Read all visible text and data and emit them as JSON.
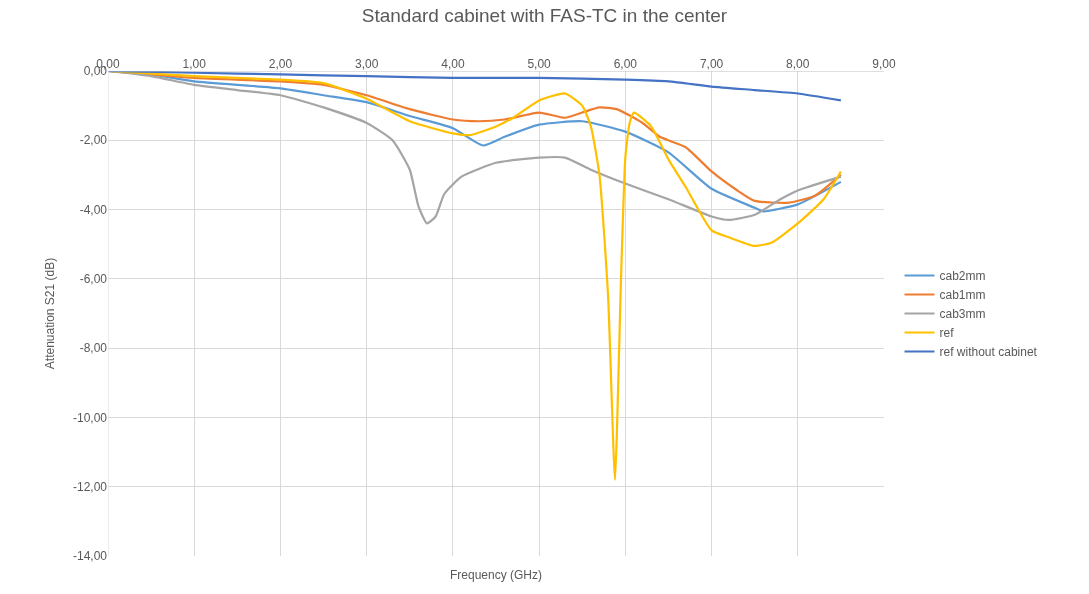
{
  "chart_data": {
    "type": "line",
    "title": "Standard cabinet with FAS-TC in the center",
    "xlabel": "Frequency (GHz)",
    "ylabel": "Attenuation S21 (dB)",
    "xlim": [
      0,
      9
    ],
    "ylim": [
      -14,
      0
    ],
    "xticks": [
      {
        "value": 0,
        "label": "0,00"
      },
      {
        "value": 1,
        "label": "1,00"
      },
      {
        "value": 2,
        "label": "2,00"
      },
      {
        "value": 3,
        "label": "3,00"
      },
      {
        "value": 4,
        "label": "4,00"
      },
      {
        "value": 5,
        "label": "5,00"
      },
      {
        "value": 6,
        "label": "6,00"
      },
      {
        "value": 7,
        "label": "7,00"
      },
      {
        "value": 8,
        "label": "8,00"
      },
      {
        "value": 9,
        "label": "9,00"
      }
    ],
    "yticks": [
      {
        "value": 0,
        "label": "0,00"
      },
      {
        "value": -2,
        "label": "-2,00"
      },
      {
        "value": -4,
        "label": "-4,00"
      },
      {
        "value": -6,
        "label": "-6,00"
      },
      {
        "value": -8,
        "label": "-8,00"
      },
      {
        "value": -10,
        "label": "-10,00"
      },
      {
        "value": -12,
        "label": "-12,00"
      },
      {
        "value": -14,
        "label": "-14,00"
      }
    ],
    "grid": true,
    "legend": "right",
    "marker": "none",
    "line_style": "solid",
    "series": [
      {
        "name": "cab2mm",
        "color": "#5b9bd5",
        "x": [
          0,
          0.5,
          1,
          2,
          2.5,
          3,
          3.5,
          4,
          4.35,
          4.6,
          5,
          5.5,
          6,
          6.5,
          7,
          7.5,
          7.6,
          8,
          8.5
        ],
        "values": [
          0,
          -0.1,
          -0.3,
          -0.5,
          -0.7,
          -0.9,
          -1.3,
          -1.65,
          -2.15,
          -1.9,
          -1.55,
          -1.45,
          -1.75,
          -2.35,
          -3.4,
          -3.95,
          -4.05,
          -3.85,
          -3.2
        ]
      },
      {
        "name": "cab1mm",
        "color": "#ed7d31",
        "x": [
          0,
          1,
          2,
          2.5,
          3,
          3.5,
          4,
          4.3,
          4.6,
          5,
          5.3,
          5.5,
          5.7,
          5.9,
          6.2,
          6.4,
          6.7,
          7,
          7.3,
          7.5,
          7.9,
          8.2,
          8.5
        ],
        "values": [
          0,
          -0.2,
          -0.3,
          -0.4,
          -0.7,
          -1.1,
          -1.4,
          -1.45,
          -1.4,
          -1.2,
          -1.35,
          -1.2,
          -1.05,
          -1.1,
          -1.5,
          -1.9,
          -2.2,
          -2.9,
          -3.45,
          -3.75,
          -3.8,
          -3.6,
          -3.0
        ]
      },
      {
        "name": "cab3mm",
        "color": "#a5a5a5",
        "x": [
          0,
          0.5,
          1,
          1.5,
          2,
          2.5,
          3,
          3.3,
          3.5,
          3.6,
          3.7,
          3.8,
          3.9,
          4.1,
          4.5,
          5,
          5.3,
          5.6,
          6,
          6.5,
          7,
          7.2,
          7.5,
          7.8,
          8,
          8.5
        ],
        "values": [
          0,
          -0.15,
          -0.4,
          -0.55,
          -0.7,
          -1.05,
          -1.5,
          -2.0,
          -2.85,
          -3.9,
          -4.4,
          -4.2,
          -3.55,
          -3.05,
          -2.65,
          -2.5,
          -2.5,
          -2.85,
          -3.25,
          -3.7,
          -4.2,
          -4.3,
          -4.15,
          -3.7,
          -3.45,
          -3.05
        ]
      },
      {
        "name": "ref",
        "color": "#ffc000",
        "x": [
          0,
          1,
          2,
          2.5,
          3,
          3.5,
          4,
          4.2,
          4.5,
          4.7,
          5,
          5.3,
          5.5,
          5.6,
          5.7,
          5.8,
          5.88,
          5.95,
          6,
          6.05,
          6.1,
          6.3,
          6.5,
          6.7,
          7,
          7.2,
          7.5,
          7.7,
          8,
          8.3,
          8.5
        ],
        "values": [
          0,
          -0.15,
          -0.25,
          -0.35,
          -0.8,
          -1.45,
          -1.8,
          -1.85,
          -1.6,
          -1.35,
          -0.85,
          -0.65,
          -1.0,
          -1.6,
          -3.0,
          -6.5,
          -11.8,
          -6.0,
          -2.5,
          -1.5,
          -1.2,
          -1.6,
          -2.55,
          -3.35,
          -4.6,
          -4.8,
          -5.05,
          -4.95,
          -4.4,
          -3.7,
          -2.9
        ]
      },
      {
        "name": "ref without cabinet",
        "color": "#4472c4",
        "x": [
          0,
          1,
          2,
          3,
          4,
          5,
          6,
          6.5,
          7,
          7.5,
          8,
          8.5
        ],
        "values": [
          0,
          -0.05,
          -0.1,
          -0.15,
          -0.2,
          -0.2,
          -0.25,
          -0.3,
          -0.45,
          -0.55,
          -0.65,
          -0.85
        ]
      }
    ]
  }
}
